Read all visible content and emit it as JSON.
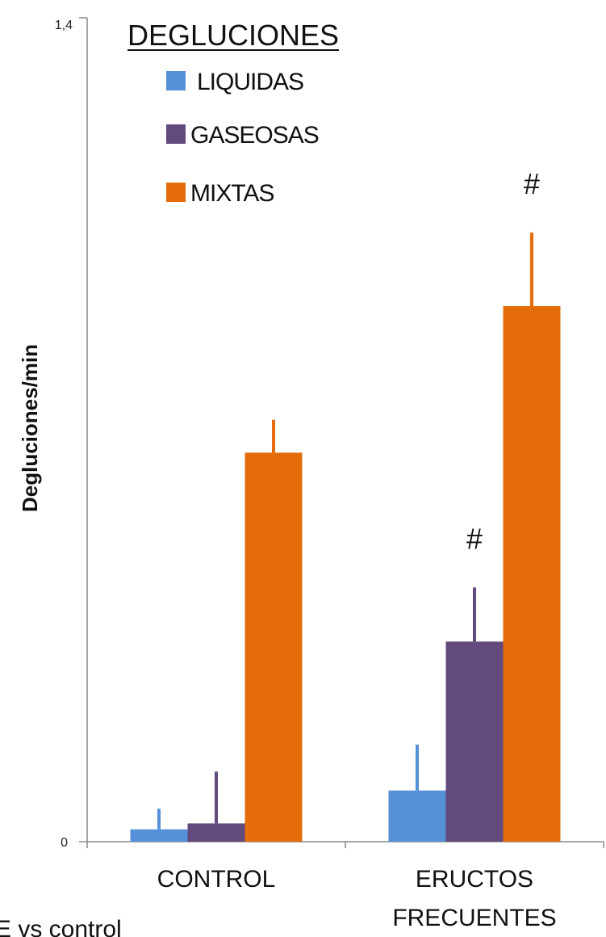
{
  "chart_data": {
    "type": "bar",
    "ylabel": "Degluciones/min",
    "ylim": [
      0,
      1.4
    ],
    "yticks": [
      "0",
      "1,4"
    ],
    "legend_title": "DEGLUCIONES",
    "legend_position": "top-center",
    "categories": [
      "CONTROL",
      "ERUCTOS FRECUENTES"
    ],
    "series": [
      {
        "name": "LIQUIDAS",
        "color": "#5590d8",
        "values": [
          0.021,
          0.087
        ],
        "errors": [
          0.035,
          0.078
        ]
      },
      {
        "name": "GASEOSAS",
        "color": "#624a7c",
        "values": [
          0.031,
          0.34
        ],
        "errors": [
          0.088,
          0.092
        ]
      },
      {
        "name": "MIXTAS",
        "color": "#e46c0a",
        "values": [
          0.661,
          0.91
        ],
        "errors": [
          0.056,
          0.125
        ]
      }
    ],
    "annotations": [
      {
        "text": "#",
        "category": "ERUCTOS FRECUENTES",
        "series": "GASEOSAS"
      },
      {
        "text": "#",
        "category": "ERUCTOS FRECUENTES",
        "series": "MIXTAS"
      }
    ],
    "footnote": "E vs control"
  }
}
